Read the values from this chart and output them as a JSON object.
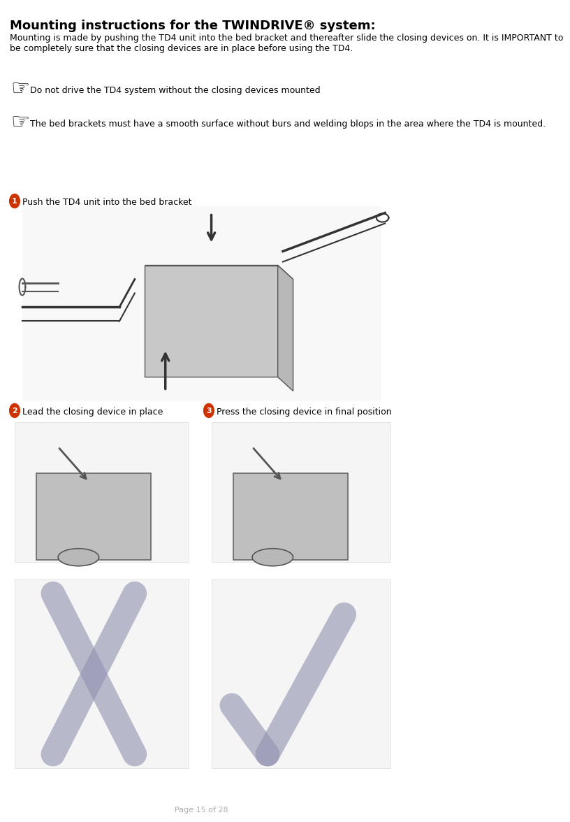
{
  "bg_color": "#ffffff",
  "title": "Mounting instructions for the TWINDRIVE® system:",
  "title_fontsize": 13,
  "title_bold": true,
  "body_text": "Mounting is made by pushing the TD4 unit into the bed bracket and thereafter slide the closing devices on. It is IMPORTANT to\nbe completely sure that the closing devices are in place before using the TD4.",
  "body_fontsize": 9,
  "warning1": "Do not drive the TD4 system without the closing devices mounted",
  "warning2": "The bed brackets must have a smooth surface without burs and welding blops in the area where the TD4 is mounted.",
  "warning_fontsize": 9,
  "step1_label": "Push the TD4 unit into the bed bracket",
  "step2_label": "Lead the closing device in place",
  "step3_label": "Press the closing device in final position",
  "step_fontsize": 9,
  "footer": "Page 15 of 28",
  "footer_fontsize": 8,
  "footer_color": "#aaaaaa",
  "step_circle_color": "#e8401c",
  "step_text_color": "#ffffff",
  "wrong_mark_color": "#b0b0c8",
  "right_mark_color": "#b0b0c8"
}
